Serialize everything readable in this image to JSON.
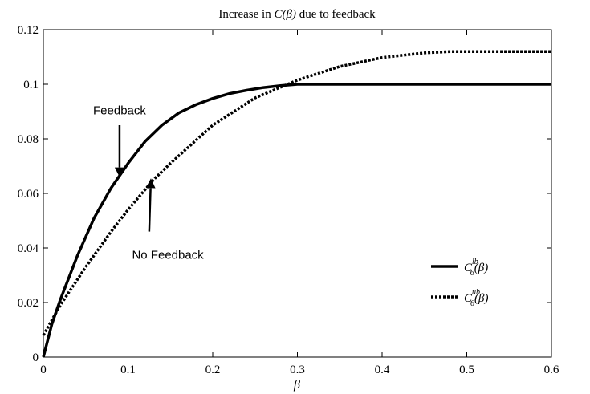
{
  "chart_data": {
    "type": "line",
    "title": {
      "prefix": "Increase in ",
      "math": "C(β)",
      "suffix": " due to feedback"
    },
    "xlabel": "β",
    "ylabel": "",
    "xlim": [
      0,
      0.6
    ],
    "ylim": [
      0,
      0.12
    ],
    "xticks": [
      0,
      0.1,
      0.2,
      0.3,
      0.4,
      0.5,
      0.6
    ],
    "yticks": [
      0,
      0.02,
      0.04,
      0.06,
      0.08,
      0.1,
      0.12
    ],
    "xtick_labels": [
      "0",
      "0.1",
      "0.2",
      "0.3",
      "0.4",
      "0.5",
      "0.6"
    ],
    "ytick_labels": [
      "0",
      "0.02",
      "0.04",
      "0.06",
      "0.08",
      "0.1",
      "0.12"
    ],
    "grid": false,
    "legend_position": "bottom-right",
    "series": [
      {
        "name": "C6lb(β)",
        "legend": {
          "base": "C",
          "sub": "6",
          "sup": "lb",
          "arg": "(β)"
        },
        "style": "solid",
        "color": "#000000",
        "x": [
          0,
          0.01,
          0.02,
          0.04,
          0.06,
          0.08,
          0.1,
          0.12,
          0.14,
          0.16,
          0.18,
          0.2,
          0.22,
          0.24,
          0.26,
          0.28,
          0.3,
          0.4,
          0.5,
          0.6
        ],
        "y": [
          0,
          0.012,
          0.021,
          0.037,
          0.051,
          0.062,
          0.071,
          0.079,
          0.085,
          0.0895,
          0.0925,
          0.0948,
          0.0966,
          0.0978,
          0.0988,
          0.0995,
          0.1,
          0.1,
          0.1,
          0.1
        ]
      },
      {
        "name": "C6ub(β)",
        "legend": {
          "base": "C",
          "sub": "6",
          "sup": "ub",
          "arg": "(β)"
        },
        "style": "dotted",
        "color": "#000000",
        "x": [
          0,
          0.02,
          0.05,
          0.08,
          0.1,
          0.13,
          0.15,
          0.2,
          0.25,
          0.3,
          0.35,
          0.4,
          0.45,
          0.48,
          0.5,
          0.55,
          0.6
        ],
        "y": [
          0.008,
          0.019,
          0.033,
          0.046,
          0.054,
          0.065,
          0.071,
          0.085,
          0.095,
          0.1015,
          0.1065,
          0.1098,
          0.1115,
          0.112,
          0.112,
          0.112,
          0.112
        ]
      }
    ],
    "annotations": [
      {
        "text": "Feedback",
        "label_at": [
          0.09,
          0.089
        ],
        "arrow_from": [
          0.09,
          0.085
        ],
        "arrow_to": [
          0.09,
          0.066
        ]
      },
      {
        "text": "No Feedback",
        "label_at": [
          0.147,
          0.036
        ],
        "arrow_from": [
          0.125,
          0.046
        ],
        "arrow_to": [
          0.127,
          0.0655
        ]
      }
    ]
  }
}
